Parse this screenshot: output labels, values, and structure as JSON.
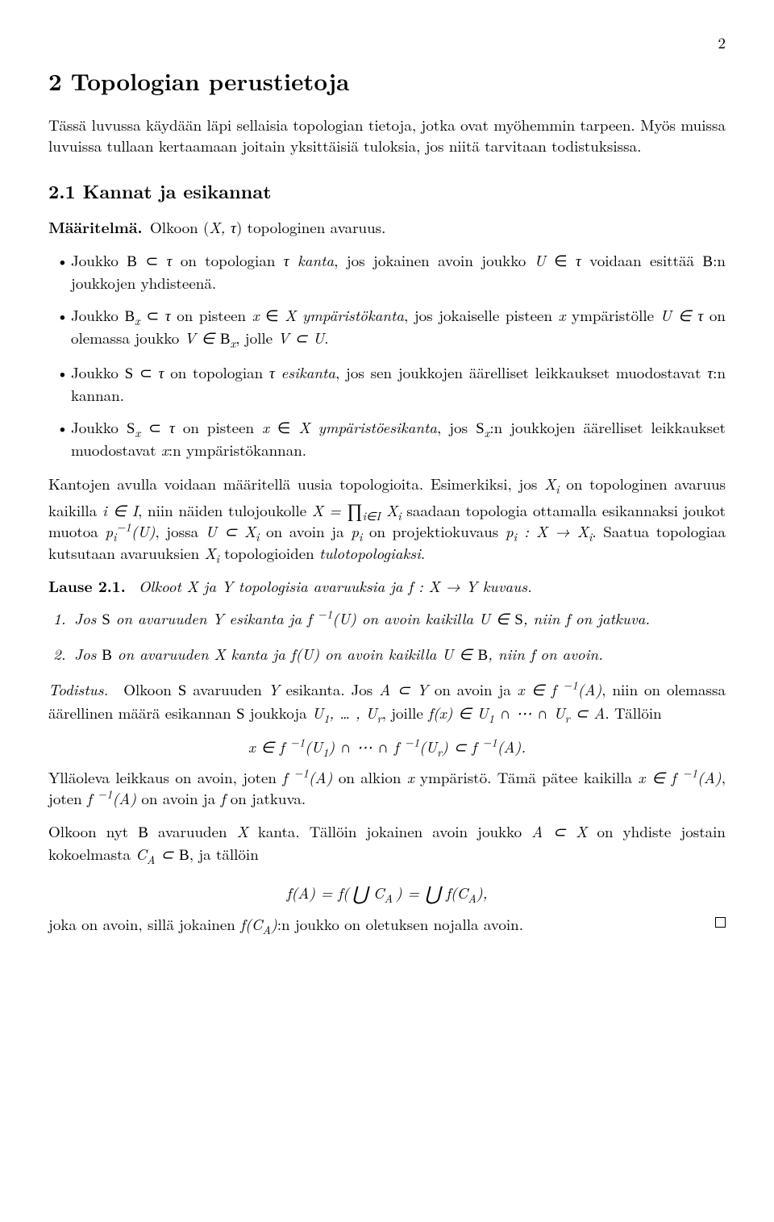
{
  "page_number": "2",
  "section_title": "2  Topologian perustietoja",
  "intro": "Tässä luvussa käydään läpi sellaisia topologian tietoja, jotka ovat myöhemmin tarpeen. Myös muissa luvuissa tullaan kertaamaan joitain yksittäisiä tuloksia, jos niitä tarvitaan todistuksissa.",
  "subsection_title": "2.1  Kannat ja esikannat",
  "defn_label": "Määritelmä.",
  "defn_lead": " Olkoon (X, τ) topologinen avaruus.",
  "bullets": [
    "Joukko 𝓑 ⊂ τ on topologian τ kanta, jos jokainen avoin joukko U ∈ τ voidaan esittää 𝓑:n joukkojen yhdisteenä.",
    "Joukko 𝓑ₓ ⊂ τ on pisteen x ∈ X ympäristökanta, jos jokaiselle pisteen x ympäristölle U ∈ τ on olemassa joukko V ∈ 𝓑ₓ, jolle V ⊂ U.",
    "Joukko 𝓢 ⊂ τ on topologian τ esikanta, jos sen joukkojen äärelliset leikkaukset muodostavat τ:n kannan.",
    "Joukko 𝓢ₓ ⊂ τ on pisteen x ∈ X ympäristöesikanta, jos 𝓢ₓ:n joukkojen äärelliset leikkaukset muodostavat x:n ympäristökannan."
  ],
  "para_kantojen": "Kantojen avulla voidaan määritellä uusia topologioita. Esimerkiksi, jos Xᵢ on topologinen avaruus kaikilla i ∈ I, niin näiden tulojoukolle X = ∏_{i∈I} Xᵢ saadaan topologia ottamalla esikannaksi joukot muotoa pᵢ⁻¹(U), jossa U ⊂ Xᵢ on avoin ja pᵢ on projektiokuvaus pᵢ : X → Xᵢ. Saatua topologiaa kutsutaan avaruuksien Xᵢ topologioiden tulotopologiaksi.",
  "lause_label": "Lause 2.1.",
  "lause_stmt": " Olkoot X ja Y topologisia avaruuksia ja f : X → Y kuvaus.",
  "enum": [
    {
      "n": "1.",
      "text": "Jos 𝓢 on avaruuden Y esikanta ja f⁻¹(U) on avoin kaikilla U ∈ 𝓢, niin f on jatkuva."
    },
    {
      "n": "2.",
      "text": "Jos 𝓑 on avaruuden X kanta ja f(U) on avoin kaikilla U ∈ 𝓑, niin f on avoin."
    }
  ],
  "proof_label": "Todistus.",
  "proof_p1": " Olkoon 𝓢 avaruuden Y esikanta. Jos A ⊂ Y on avoin ja x ∈ f⁻¹(A), niin on olemassa äärellinen määrä esikannan 𝓢 joukkoja U₁, … , Uᵣ, joille f(x) ∈ U₁ ∩ ⋯ ∩ Uᵣ ⊂ A. Tällöin",
  "proof_disp1": "x ∈ f⁻¹(U₁) ∩ ⋯ ∩ f⁻¹(Uᵣ) ⊂ f⁻¹(A).",
  "proof_p2": "Ylläoleva leikkaus on avoin, joten f⁻¹(A) on alkion x ympäristö. Tämä pätee kaikilla x ∈ f⁻¹(A), joten f⁻¹(A) on avoin ja f on jatkuva.",
  "proof_p3": "Olkoon nyt 𝓑 avaruuden X kanta. Tällöin jokainen avoin joukko A ⊂ X on yhdiste jostain kokoelmasta C_A ⊂ 𝓑, ja tällöin",
  "proof_disp2": "f(A) = f( ⋃ C_A ) = ⋃ f(C_A),",
  "proof_p4": "joka on avoin, sillä jokainen f(C_A):n joukko on oletuksen nojalla avoin."
}
